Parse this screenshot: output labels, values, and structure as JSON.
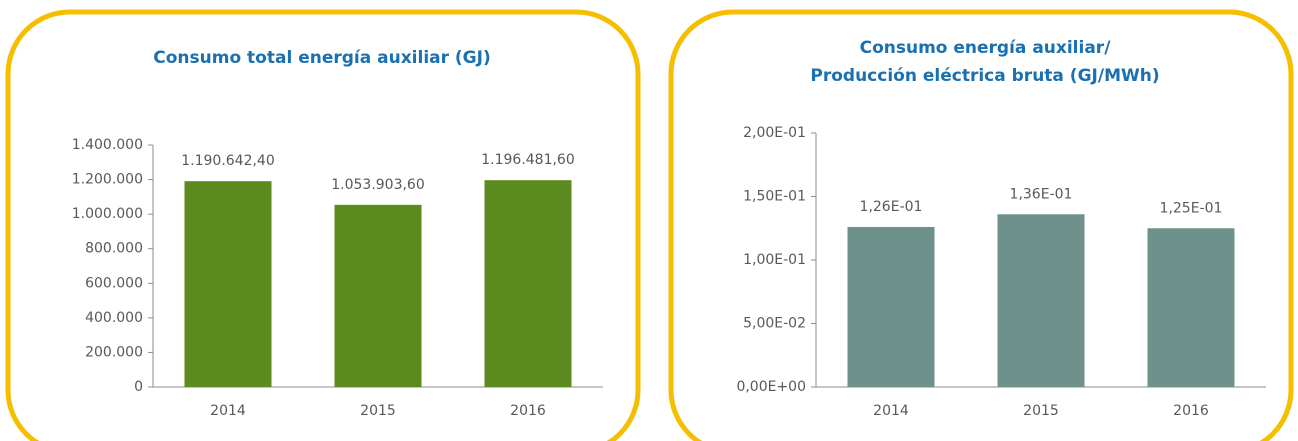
{
  "chart_data": [
    {
      "type": "bar",
      "title": [
        "Consumo total energía auxiliar (GJ)"
      ],
      "categories": [
        "2014",
        "2015",
        "2016"
      ],
      "values": [
        1190642.4,
        1053903.6,
        1196481.6
      ],
      "value_labels": [
        "1.190.642,40",
        "1.053.903,60",
        "1.196.481,60"
      ],
      "color": "#5b8a1e",
      "ylim": [
        0,
        1400000
      ],
      "yticks": [
        0,
        {
          "value": 200000,
          "label": "200.000"
        },
        {
          "value": 400000,
          "label": "400.000"
        },
        {
          "value": 600000,
          "label": "600.000"
        },
        {
          "value": 800000,
          "label": "800.000"
        },
        {
          "value": 1000000,
          "label": "1.000.000"
        },
        {
          "value": 1200000,
          "label": "1.200.000"
        },
        {
          "value": 1400000,
          "label": "1.400.000"
        }
      ],
      "grid": false
    },
    {
      "type": "bar",
      "title": [
        "Consumo energía auxiliar/",
        "Producción eléctrica bruta (GJ/MWh)"
      ],
      "categories": [
        "2014",
        "2015",
        "2016"
      ],
      "values": [
        0.126,
        0.136,
        0.125
      ],
      "value_labels": [
        "1,26E-01",
        "1,36E-01",
        "1,25E-01"
      ],
      "color": "#6e918c",
      "ylim": [
        0,
        0.2
      ],
      "yticks": [
        {
          "value": 0,
          "label": "0,00E+00"
        },
        {
          "value": 0.05,
          "label": "5,00E-02"
        },
        {
          "value": 0.1,
          "label": "1,00E-01"
        },
        {
          "value": 0.15,
          "label": "1,50E-01"
        },
        {
          "value": 0.2,
          "label": "2,00E-01"
        }
      ],
      "grid": false
    }
  ]
}
